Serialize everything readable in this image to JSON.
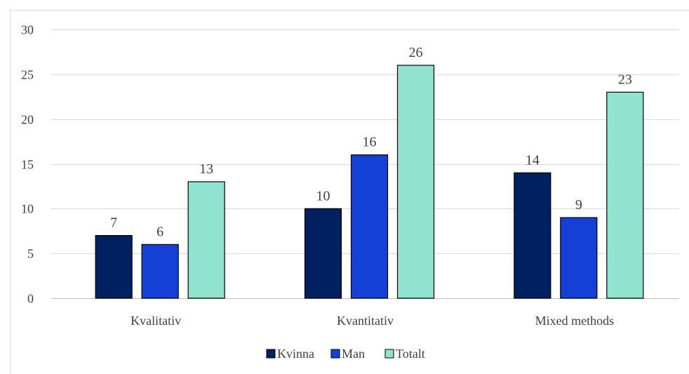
{
  "chart_data": {
    "type": "bar",
    "categories": [
      "Kvalitativ",
      "Kvantitativ",
      "Mixed methods"
    ],
    "series": [
      {
        "name": "Kvinna",
        "values": [
          7,
          10,
          14
        ],
        "color": "#002060"
      },
      {
        "name": "Man",
        "values": [
          6,
          16,
          9
        ],
        "color": "#1540D6"
      },
      {
        "name": "Totalt",
        "values": [
          13,
          26,
          23
        ],
        "color": "#8FE3CF"
      }
    ],
    "ylim": [
      0,
      30
    ],
    "yticks": [
      0,
      5,
      10,
      15,
      20,
      25,
      30
    ],
    "grid": true,
    "legend": "bottom",
    "data_labels": true
  }
}
